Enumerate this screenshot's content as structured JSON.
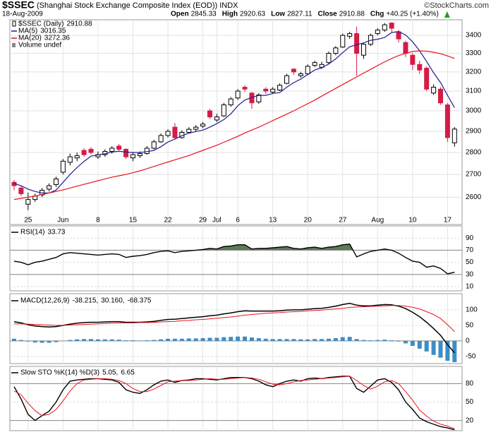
{
  "header": {
    "symbol": "$SSEC",
    "name": "(Shanghai Stock Exchange Composite Index (EOD)) INDX",
    "credit": "©StockCharts.com",
    "date": "18-Aug-2009",
    "fields": [
      {
        "label": "Open",
        "value": 2845.33
      },
      {
        "label": "High",
        "value": 2920.63
      },
      {
        "label": "Low",
        "value": 2827.11
      },
      {
        "label": "Close",
        "value": 2910.88
      },
      {
        "label": "Chg",
        "value": "+40.25 (+1.40%)"
      }
    ]
  },
  "chart_data": [
    {
      "type": "candlestick",
      "name": "$SSEC (Daily)",
      "volume_label": "Volume undef",
      "log": true,
      "grid": true,
      "categories": [
        null,
        null,
        "25",
        null,
        null,
        null,
        null,
        "Jun",
        null,
        null,
        null,
        null,
        "8",
        null,
        null,
        null,
        null,
        "15",
        null,
        null,
        null,
        null,
        "22",
        null,
        null,
        null,
        null,
        "29",
        null,
        "Jul",
        null,
        null,
        "6",
        null,
        null,
        null,
        null,
        "13",
        null,
        null,
        null,
        null,
        "20",
        null,
        null,
        null,
        null,
        "27",
        null,
        null,
        null,
        null,
        "Aug",
        null,
        null,
        null,
        null,
        "10",
        null,
        null,
        null,
        null,
        "17",
        null
      ],
      "up_color": "#ffffff",
      "down_color": "#d41c46",
      "open": [
        2665,
        2640,
        2570,
        2590,
        2610,
        2635,
        2655,
        2710,
        2755,
        2775,
        2810,
        2815,
        2780,
        2790,
        2805,
        2830,
        2815,
        2775,
        2785,
        2795,
        2820,
        2850,
        2880,
        2920,
        2870,
        2895,
        2910,
        2925,
        3000,
        2955,
        2975,
        3030,
        3065,
        3120,
        3090,
        3045,
        3110,
        3095,
        3105,
        3140,
        3215,
        3180,
        3190,
        3235,
        3225,
        3250,
        3300,
        3335,
        3395,
        3410,
        3290,
        3350,
        3410,
        3430,
        3470,
        3420,
        3360,
        3290,
        3240,
        3220,
        3090,
        3110,
        3030,
        2845.33
      ],
      "high": [
        2675,
        2650,
        2620,
        2615,
        2640,
        2660,
        2690,
        2770,
        2795,
        2800,
        2820,
        2825,
        2805,
        2815,
        2830,
        2840,
        2820,
        2800,
        2805,
        2830,
        2860,
        2890,
        2910,
        2940,
        2905,
        2920,
        2930,
        2945,
        3010,
        2985,
        3040,
        3070,
        3110,
        3130,
        3095,
        3090,
        3120,
        3120,
        3140,
        3190,
        3220,
        3200,
        3240,
        3260,
        3255,
        3310,
        3340,
        3410,
        3420,
        3450,
        3360,
        3410,
        3440,
        3470,
        3475,
        3430,
        3370,
        3300,
        3260,
        3230,
        3135,
        3120,
        3040,
        2920.63
      ],
      "low": [
        2630,
        2605,
        2545,
        2580,
        2600,
        2625,
        2645,
        2700,
        2740,
        2760,
        2780,
        2790,
        2770,
        2780,
        2795,
        2805,
        2770,
        2760,
        2775,
        2790,
        2815,
        2845,
        2870,
        2860,
        2865,
        2890,
        2900,
        2915,
        2960,
        2945,
        2970,
        3020,
        3055,
        3095,
        3010,
        3035,
        3085,
        3085,
        3100,
        3135,
        3185,
        3170,
        3185,
        3225,
        3215,
        3245,
        3290,
        3330,
        3380,
        3180,
        3270,
        3340,
        3400,
        3420,
        3420,
        3360,
        3280,
        3210,
        3190,
        3100,
        3080,
        3030,
        2850,
        2827.11
      ],
      "close": [
        2650,
        2615,
        2590,
        2605,
        2630,
        2650,
        2680,
        2760,
        2780,
        2785,
        2790,
        2800,
        2790,
        2805,
        2820,
        2815,
        2780,
        2790,
        2795,
        2820,
        2850,
        2880,
        2900,
        2870,
        2895,
        2910,
        2920,
        2935,
        2970,
        2970,
        3030,
        3060,
        3100,
        3110,
        3040,
        3080,
        3100,
        3110,
        3130,
        3180,
        3200,
        3190,
        3230,
        3250,
        3240,
        3300,
        3330,
        3400,
        3410,
        3300,
        3350,
        3400,
        3430,
        3460,
        3440,
        3380,
        3300,
        3240,
        3210,
        3110,
        3120,
        3040,
        2870,
        2910.88
      ],
      "overlays": [
        {
          "name": "MA(5)",
          "color": "#1f1f8f",
          "values": [
            2660,
            2650,
            2635,
            2625,
            2618,
            2618,
            2631,
            2665,
            2700,
            2731,
            2759,
            2783,
            2789,
            2794,
            2802,
            2806,
            2802,
            2800,
            2800,
            2804,
            2810,
            2827,
            2849,
            2863,
            2879,
            2891,
            2899,
            2906,
            2920,
            2937,
            2957,
            2985,
            3026,
            3054,
            3068,
            3078,
            3078,
            3088,
            3092,
            3120,
            3144,
            3162,
            3186,
            3210,
            3222,
            3242,
            3270,
            3304,
            3336,
            3348,
            3358,
            3372,
            3378,
            3388,
            3416,
            3422,
            3402,
            3364,
            3314,
            3256,
            3196,
            3144,
            3078,
            3016.35
          ]
        },
        {
          "name": "MA(20)",
          "color": "#e8141c",
          "values": [
            2590,
            2595,
            2600,
            2605,
            2612,
            2618,
            2625,
            2632,
            2640,
            2648,
            2656,
            2664,
            2672,
            2680,
            2688,
            2694,
            2700,
            2708,
            2716,
            2726,
            2736,
            2746,
            2756,
            2766,
            2776,
            2786,
            2798,
            2810,
            2822,
            2834,
            2848,
            2862,
            2876,
            2892,
            2906,
            2920,
            2936,
            2952,
            2968,
            2984,
            3000,
            3018,
            3036,
            3054,
            3074,
            3094,
            3114,
            3134,
            3154,
            3174,
            3194,
            3214,
            3234,
            3254,
            3272,
            3288,
            3300,
            3310,
            3314,
            3312,
            3306,
            3298,
            3286,
            3272.36
          ]
        }
      ],
      "ylim": [
        2485,
        3489
      ],
      "yticks": [
        2600,
        2700,
        2800,
        2900,
        3000,
        3100,
        3200,
        3300,
        3400
      ]
    },
    {
      "type": "line",
      "name": "RSI(14)",
      "fill_above": 70,
      "fill_color": "#5e7a56",
      "series": [
        {
          "color": "#000000",
          "last_label": "33.73",
          "values": [
            52,
            50,
            46,
            50,
            52,
            55,
            58,
            64,
            66,
            65,
            64,
            63,
            62,
            63,
            64,
            63,
            58,
            60,
            61,
            63,
            66,
            68,
            69,
            66,
            68,
            69,
            70,
            71,
            73,
            72,
            76,
            77,
            79,
            79,
            72,
            73,
            73,
            74,
            75,
            76,
            73,
            72,
            74,
            75,
            73,
            75,
            76,
            79,
            80,
            59,
            64,
            68,
            70,
            72,
            70,
            65,
            58,
            52,
            50,
            42,
            44,
            40,
            31,
            33.73
          ]
        }
      ],
      "levels": [
        70,
        30
      ],
      "ylim": [
        3,
        110
      ],
      "yticks": [
        90,
        70,
        50,
        30,
        10
      ]
    },
    {
      "type": "macd",
      "name": "MACD(12,26,9)",
      "series": [
        {
          "kind": "bar",
          "color": "#3d8dc6",
          "last_label": "-68.375",
          "values": [
            7,
            3,
            -2,
            -5,
            -6,
            -6,
            -4,
            0,
            3,
            5,
            6,
            6,
            5,
            5,
            5,
            4,
            2,
            2,
            1,
            2,
            3,
            5,
            7,
            7,
            7,
            8,
            8,
            9,
            10,
            10,
            12,
            13,
            14,
            14,
            11,
            9,
            7,
            6,
            6,
            6,
            6,
            5,
            5,
            6,
            6,
            7,
            9,
            12,
            13,
            6,
            3,
            2,
            3,
            4,
            2,
            -2,
            -8,
            -16,
            -25,
            -34,
            -45,
            -54,
            -64,
            -68.375
          ]
        },
        {
          "kind": "line",
          "color": "#000000",
          "last_label": "-38.215,",
          "values": [
            62,
            58,
            52,
            48,
            46,
            45,
            46,
            50,
            54,
            57,
            59,
            60,
            60,
            61,
            62,
            62,
            60,
            60,
            60,
            61,
            63,
            66,
            69,
            70,
            72,
            74,
            76,
            78,
            81,
            83,
            87,
            90,
            94,
            97,
            96,
            96,
            96,
            96,
            97,
            99,
            100,
            100,
            102,
            104,
            105,
            108,
            112,
            117,
            121,
            115,
            113,
            113,
            115,
            117,
            116,
            112,
            104,
            92,
            78,
            60,
            40,
            18,
            -12,
            -38.215
          ]
        },
        {
          "kind": "line",
          "color": "#e8141c",
          "last_label": "30.160,",
          "values": [
            55,
            55,
            54,
            53,
            52,
            51,
            50,
            50,
            51,
            52,
            53,
            54,
            55,
            56,
            57,
            58,
            58,
            58,
            59,
            59,
            60,
            61,
            62,
            63,
            65,
            66,
            68,
            69,
            71,
            73,
            75,
            77,
            80,
            83,
            85,
            87,
            89,
            90,
            91,
            93,
            94,
            95,
            97,
            98,
            99,
            101,
            103,
            105,
            108,
            109,
            110,
            111,
            112,
            113,
            114,
            114,
            112,
            108,
            103,
            94,
            85,
            72,
            52,
            30.16
          ]
        }
      ],
      "legend_order": [
        1,
        2,
        0
      ],
      "levels": [
        0
      ],
      "ylim": [
        -73,
        152
      ],
      "yticks": [
        100,
        50,
        0,
        -50
      ]
    },
    {
      "type": "line",
      "name": "Slow STO %K(14) %D(3)",
      "series": [
        {
          "color": "#000000",
          "last_label": "5.05,",
          "values": [
            75,
            55,
            30,
            20,
            28,
            35,
            50,
            70,
            84,
            86,
            87,
            88,
            88,
            87,
            86,
            82,
            70,
            66,
            64,
            70,
            78,
            84,
            86,
            82,
            85,
            86,
            88,
            88,
            87,
            86,
            88,
            90,
            90,
            90,
            88,
            84,
            78,
            75,
            80,
            84,
            86,
            84,
            88,
            89,
            88,
            90,
            91,
            92,
            92,
            72,
            66,
            76,
            86,
            88,
            82,
            70,
            50,
            38,
            24,
            18,
            14,
            10,
            8,
            5.05
          ]
        },
        {
          "color": "#e8141c",
          "last_label": "6.65",
          "values": [
            68,
            62,
            48,
            36,
            28,
            30,
            38,
            52,
            68,
            80,
            86,
            87,
            88,
            88,
            87,
            85,
            80,
            72,
            67,
            67,
            71,
            77,
            83,
            84,
            85,
            85,
            86,
            87,
            88,
            87,
            87,
            88,
            89,
            90,
            89,
            87,
            83,
            79,
            78,
            80,
            83,
            85,
            86,
            87,
            88,
            89,
            90,
            91,
            92,
            85,
            77,
            71,
            76,
            83,
            85,
            80,
            67,
            53,
            37,
            27,
            19,
            14,
            11,
            6.65
          ]
        }
      ],
      "levels": [
        80,
        20
      ],
      "ylim": [
        3.5,
        108
      ],
      "yticks": [
        80,
        50,
        20
      ]
    }
  ]
}
